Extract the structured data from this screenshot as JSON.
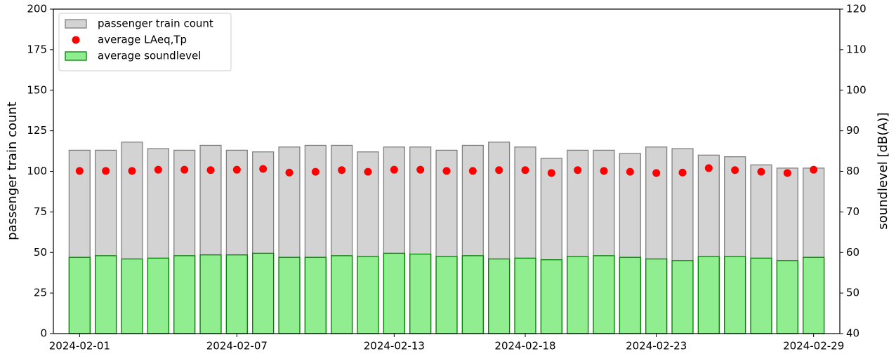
{
  "chart_data": {
    "type": "bar",
    "x": [
      "2024-02-01",
      "2024-02-02",
      "2024-02-03",
      "2024-02-04",
      "2024-02-05",
      "2024-02-06",
      "2024-02-07",
      "2024-02-08",
      "2024-02-09",
      "2024-02-10",
      "2024-02-11",
      "2024-02-12",
      "2024-02-13",
      "2024-02-14",
      "2024-02-15",
      "2024-02-16",
      "2024-02-17",
      "2024-02-18",
      "2024-02-19",
      "2024-02-20",
      "2024-02-21",
      "2024-02-22",
      "2024-02-23",
      "2024-02-24",
      "2024-02-25",
      "2024-02-26",
      "2024-02-27",
      "2024-02-28",
      "2024-02-29"
    ],
    "xlim": [
      "2024-01-31",
      "2024-03-01"
    ],
    "xticks": [
      "2024-02-01",
      "2024-02-07",
      "2024-02-13",
      "2024-02-18",
      "2024-02-23",
      "2024-02-29"
    ],
    "ylabel": "passenger train count",
    "y2label": "soundlevel [dB(A)]",
    "ylim": [
      0,
      200
    ],
    "yticks": [
      0,
      25,
      50,
      75,
      100,
      125,
      150,
      175,
      200
    ],
    "y2lim": [
      40,
      120
    ],
    "y2ticks": [
      40,
      50,
      60,
      70,
      80,
      90,
      100,
      110,
      120
    ],
    "legend": "upper left",
    "series": [
      {
        "name": "passenger train count",
        "type": "bar",
        "color": "#d3d3d3",
        "edgecolor": "#808080",
        "values": [
          113,
          113,
          118,
          114,
          113,
          116,
          113,
          112,
          115,
          116,
          116,
          112,
          115,
          115,
          113,
          116,
          118,
          115,
          108,
          113,
          113,
          111,
          115,
          114,
          110,
          109,
          104,
          102,
          102
        ]
      },
      {
        "name": "average LAeq,Tp",
        "type": "scatter",
        "axis": "y2",
        "color": "#ff0000",
        "values": [
          80.1,
          80.1,
          80.1,
          80.4,
          80.4,
          80.3,
          80.4,
          80.6,
          79.7,
          79.9,
          80.3,
          79.9,
          80.4,
          80.4,
          80.1,
          80.1,
          80.3,
          80.3,
          79.6,
          80.3,
          80.1,
          79.9,
          79.6,
          79.7,
          80.8,
          80.3,
          79.9,
          79.6,
          80.4
        ]
      },
      {
        "name": "average soundlevel",
        "type": "bar",
        "axis": "y2",
        "color": "#90ee90",
        "edgecolor": "#008000",
        "values": [
          58.8,
          59.2,
          58.4,
          58.6,
          59.2,
          59.4,
          59.4,
          59.8,
          58.8,
          58.8,
          59.2,
          59.0,
          59.8,
          59.6,
          59.0,
          59.2,
          58.4,
          58.6,
          58.2,
          59.0,
          59.2,
          58.8,
          58.4,
          58.0,
          59.0,
          59.0,
          58.6,
          58.0,
          58.8
        ]
      }
    ]
  }
}
